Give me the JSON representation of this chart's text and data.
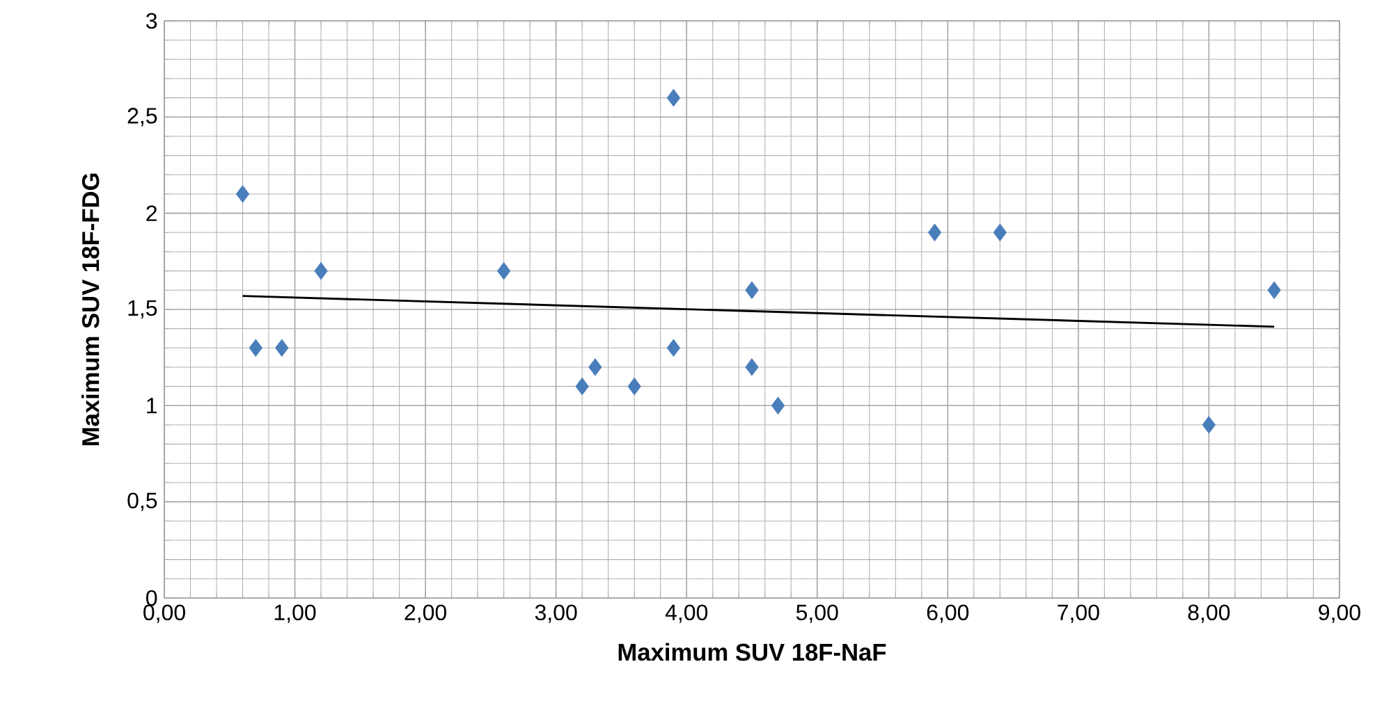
{
  "chart_data": {
    "type": "scatter",
    "xlabel": "Maximum SUV 18F-NaF",
    "ylabel": "Maximum SUV 18F-FDG",
    "xlim": [
      0,
      9
    ],
    "ylim": [
      0,
      3
    ],
    "grid": true,
    "marker": "diamond",
    "xticks": [
      {
        "value": 0,
        "label": "0,00"
      },
      {
        "value": 1,
        "label": "1,00"
      },
      {
        "value": 2,
        "label": "2,00"
      },
      {
        "value": 3,
        "label": "3,00"
      },
      {
        "value": 4,
        "label": "4,00"
      },
      {
        "value": 5,
        "label": "5,00"
      },
      {
        "value": 6,
        "label": "6,00"
      },
      {
        "value": 7,
        "label": "7,00"
      },
      {
        "value": 8,
        "label": "8,00"
      },
      {
        "value": 9,
        "label": "9,00"
      }
    ],
    "yticks": [
      0,
      {
        "value": 0.5,
        "label": "0,5"
      },
      1,
      {
        "value": 1.5,
        "label": "1,5"
      },
      2,
      {
        "value": 2.5,
        "label": "2,5"
      },
      3
    ],
    "series": [
      {
        "color": "#4a7ebb",
        "x": [
          0.6,
          0.7,
          0.9,
          1.2,
          2.6,
          3.2,
          3.3,
          3.6,
          3.9,
          3.9,
          4.5,
          4.5,
          4.7,
          5.9,
          6.4,
          8.0,
          8.5
        ],
        "values": [
          2.1,
          1.3,
          1.3,
          1.7,
          1.7,
          1.1,
          1.2,
          1.1,
          2.6,
          1.3,
          1.6,
          1.2,
          1.0,
          1.9,
          1.9,
          0.9,
          1.6
        ]
      },
      {
        "type": "line",
        "color": "#000000",
        "marker": "none",
        "x": [
          0.6,
          8.5
        ],
        "values": [
          1.57,
          1.41
        ]
      }
    ]
  }
}
